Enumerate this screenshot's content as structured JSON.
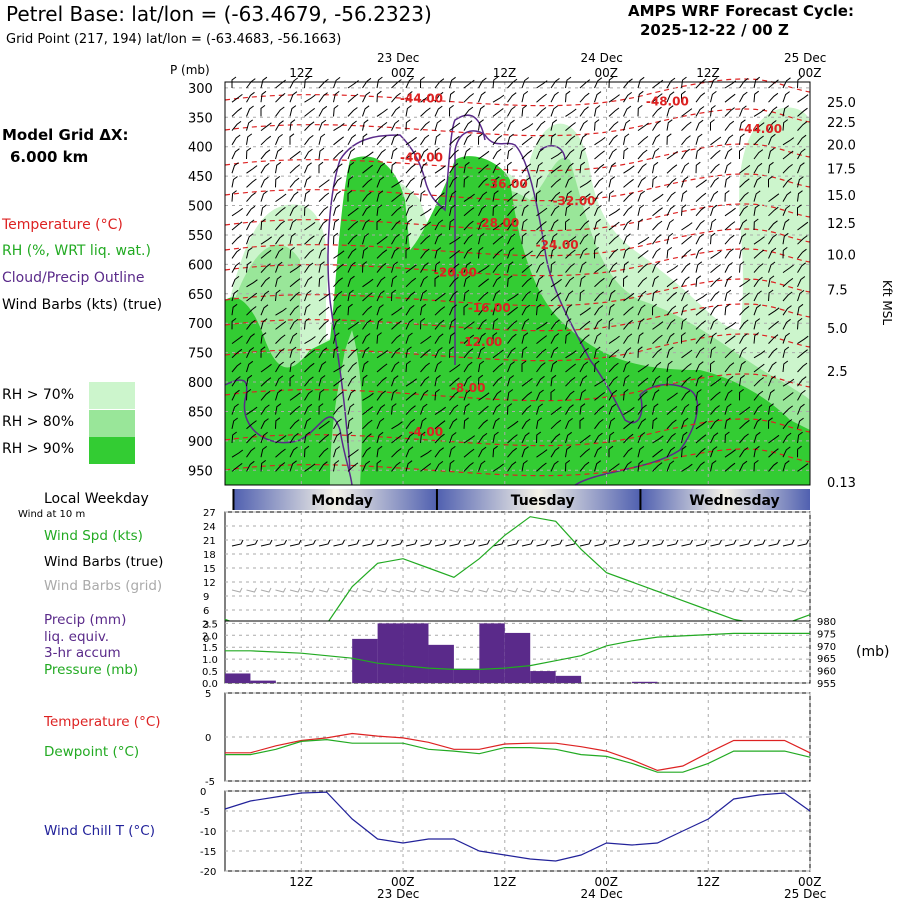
{
  "header": {
    "title": "Petrel Base:  lat/lon = (-63.4679, -56.2323)",
    "grid_point": "Grid Point (217, 194) lat/lon = (-63.4683, -56.1663)",
    "forecast_line1": "AMPS WRF Forecast Cycle:",
    "forecast_line2": "2025-12-22 / 00  Z",
    "model_grid_line1": "Model Grid ΔX:",
    "model_grid_line2": "6.000 km"
  },
  "legend": {
    "temperature": "Temperature (°C)",
    "rh": "RH (%, WRT liq. wat.)",
    "cloud": "Cloud/Precip Outline",
    "wind_barbs": "Wind Barbs (kts) (true)",
    "rh_levels": [
      {
        "label": "RH > 70%",
        "color": "#ccf5cc"
      },
      {
        "label": "RH > 80%",
        "color": "#99e699"
      },
      {
        "label": "RH > 90%",
        "color": "#33cc33"
      }
    ]
  },
  "panel_labels": {
    "local_weekday": "Local Weekday",
    "wind_10m": "Wind at 10 m",
    "wind_speed": "Wind Spd (kts)",
    "wind_barbs_true": "Wind Barbs (true)",
    "wind_barbs_grid": "Wind Barbs (grid)",
    "precip_1": "Precip (mm)",
    "precip_2": "liq. equiv.",
    "precip_3": "3-hr accum",
    "pressure": "Pressure (mb)",
    "temperature": "Temperature (°C)",
    "dewpoint": "Dewpoint (°C)",
    "wind_chill": "Wind Chill T (°C)",
    "pressure_unit": "(mb)",
    "p_axis_label": "P (mb)",
    "kft_label": "Kft MSL"
  },
  "colors": {
    "temp": "#dd2222",
    "rh_line": "#22aa22",
    "cloud": "#5a2a8a",
    "precip": "#5a2a8a",
    "wind_chill": "#22229a",
    "grid_barbs": "#aaaaaa"
  },
  "chart_data": [
    {
      "type": "area",
      "name": "time-height cross section",
      "x_tick_labels": [
        "12Z",
        "00Z",
        "12Z",
        "00Z",
        "12Z",
        "00Z"
      ],
      "x_tick_hours": [
        12,
        24,
        36,
        48,
        60,
        72
      ],
      "x_date_labels": [
        {
          "hour": 24,
          "label": "23 Dec"
        },
        {
          "hour": 48,
          "label": "24 Dec"
        },
        {
          "hour": 72,
          "label": "25 Dec"
        }
      ],
      "xlim_hours": [
        3,
        72
      ],
      "pressure_ticks": [
        300,
        350,
        400,
        450,
        500,
        550,
        600,
        650,
        700,
        750,
        800,
        850,
        900,
        950
      ],
      "ylim_pressure": [
        290,
        975
      ],
      "height_ticks_kft": [
        {
          "label": "25.0",
          "p": 324
        },
        {
          "label": "22.5",
          "p": 358
        },
        {
          "label": "20.0",
          "p": 396
        },
        {
          "label": "17.5",
          "p": 437
        },
        {
          "label": "15.0",
          "p": 482
        },
        {
          "label": "12.5",
          "p": 530
        },
        {
          "label": "10.0",
          "p": 583
        },
        {
          "label": "7.5",
          "p": 643
        },
        {
          "label": "5.0",
          "p": 708
        },
        {
          "label": "2.5",
          "p": 781
        },
        {
          "label": "0.13",
          "p": 970
        }
      ],
      "isotherm_labels": [
        {
          "label": "-44.00",
          "hour": 26,
          "p": 318
        },
        {
          "label": "-48.00",
          "hour": 55,
          "p": 323
        },
        {
          "label": "-44.00",
          "hour": 66,
          "p": 370
        },
        {
          "label": "-40.00",
          "hour": 26,
          "p": 418
        },
        {
          "label": "-36.00",
          "hour": 36,
          "p": 463
        },
        {
          "label": "-32.00",
          "hour": 44,
          "p": 492
        },
        {
          "label": "-28.00",
          "hour": 35,
          "p": 530
        },
        {
          "label": "-24.00",
          "hour": 42,
          "p": 567
        },
        {
          "label": "-20.00",
          "hour": 30,
          "p": 614
        },
        {
          "label": "-16.00",
          "hour": 34,
          "p": 674
        },
        {
          "label": "-12.00",
          "hour": 33,
          "p": 732
        },
        {
          "label": "-8.00",
          "hour": 32,
          "p": 810
        },
        {
          "label": "-4.00",
          "hour": 27,
          "p": 885
        }
      ],
      "day_bands": [
        {
          "label": "Monday",
          "start_hour": 4,
          "end_hour": 28
        },
        {
          "label": "Tuesday",
          "start_hour": 28,
          "end_hour": 52
        },
        {
          "label": "Wednesday",
          "start_hour": 52,
          "end_hour": 72
        }
      ]
    },
    {
      "type": "line",
      "name": "wind speed",
      "ylabel": "Wind Spd (kts)",
      "y_ticks": [
        0,
        3,
        6,
        9,
        12,
        15,
        18,
        21,
        24,
        27
      ],
      "ylim": [
        0,
        27
      ],
      "x_hours": [
        3,
        6,
        9,
        12,
        15,
        18,
        21,
        24,
        27,
        30,
        33,
        36,
        39,
        42,
        45,
        48,
        51,
        54,
        57,
        60,
        63,
        66,
        69,
        72
      ],
      "values": [
        4,
        2,
        3,
        3,
        3,
        11,
        16,
        17,
        15,
        13,
        17,
        22,
        26,
        25,
        19,
        14,
        12,
        10,
        8,
        6,
        4,
        3,
        3,
        5
      ]
    },
    {
      "type": "bar",
      "name": "precipitation",
      "ylabel": "Precip (mm)",
      "y_ticks": [
        0.0,
        0.5,
        1.0,
        1.5,
        2.0,
        2.5
      ],
      "ylim": [
        0,
        2.6
      ],
      "bars": [
        {
          "start_hour": 3,
          "end_hour": 6,
          "value": 0.4
        },
        {
          "start_hour": 6,
          "end_hour": 9,
          "value": 0.1
        },
        {
          "start_hour": 18,
          "end_hour": 21,
          "value": 1.85
        },
        {
          "start_hour": 21,
          "end_hour": 24,
          "value": 2.5
        },
        {
          "start_hour": 24,
          "end_hour": 27,
          "value": 2.5
        },
        {
          "start_hour": 27,
          "end_hour": 30,
          "value": 1.6
        },
        {
          "start_hour": 30,
          "end_hour": 33,
          "value": 0.6
        },
        {
          "start_hour": 33,
          "end_hour": 36,
          "value": 2.5
        },
        {
          "start_hour": 36,
          "end_hour": 39,
          "value": 2.1
        },
        {
          "start_hour": 39,
          "end_hour": 42,
          "value": 0.5
        },
        {
          "start_hour": 42,
          "end_hour": 45,
          "value": 0.3
        },
        {
          "start_hour": 51,
          "end_hour": 54,
          "value": 0.05
        }
      ]
    },
    {
      "type": "line",
      "name": "pressure",
      "ylabel": "Pressure (mb)",
      "y_ticks": [
        955,
        960,
        965,
        970,
        975,
        980
      ],
      "ylim": [
        955,
        980
      ],
      "x_hours": [
        3,
        6,
        9,
        12,
        15,
        18,
        21,
        24,
        27,
        30,
        33,
        36,
        39,
        42,
        45,
        48,
        51,
        54,
        57,
        60,
        63,
        66,
        69,
        72
      ],
      "values": [
        968,
        968,
        967.5,
        967,
        966,
        965,
        963,
        962,
        961,
        960.5,
        960.5,
        961,
        962,
        964,
        966,
        970,
        972,
        973.5,
        974,
        974.5,
        975,
        975,
        975,
        975
      ]
    },
    {
      "type": "line",
      "name": "temperature and dewpoint",
      "y_ticks": [
        -5,
        0,
        5
      ],
      "ylim": [
        -5,
        5
      ],
      "x_hours": [
        3,
        6,
        9,
        12,
        15,
        18,
        21,
        24,
        27,
        30,
        33,
        36,
        39,
        42,
        45,
        48,
        51,
        54,
        57,
        60,
        63,
        66,
        69,
        72
      ],
      "series": [
        {
          "name": "Temperature",
          "values": [
            -1.8,
            -1.8,
            -1.0,
            -0.4,
            -0.1,
            0.4,
            0.1,
            -0.1,
            -0.6,
            -1.4,
            -1.4,
            -0.8,
            -0.7,
            -0.7,
            -1.1,
            -1.6,
            -2.6,
            -3.8,
            -3.3,
            -1.8,
            -0.4,
            -0.4,
            -0.4,
            -1.8
          ]
        },
        {
          "name": "Dewpoint",
          "values": [
            -2.0,
            -2.0,
            -1.4,
            -0.5,
            -0.3,
            -0.7,
            -0.7,
            -0.7,
            -1.4,
            -1.6,
            -1.9,
            -1.2,
            -1.2,
            -1.4,
            -2.0,
            -2.2,
            -3.0,
            -4.0,
            -4.0,
            -3.0,
            -1.6,
            -1.6,
            -1.6,
            -2.3
          ]
        }
      ]
    },
    {
      "type": "line",
      "name": "wind chill",
      "ylabel": "Wind Chill T (°C)",
      "y_ticks": [
        0,
        -5,
        -10,
        -15,
        -20
      ],
      "ylim": [
        -20,
        0
      ],
      "x_hours": [
        3,
        6,
        9,
        12,
        15,
        18,
        21,
        24,
        27,
        30,
        33,
        36,
        39,
        42,
        45,
        48,
        51,
        54,
        57,
        60,
        63,
        66,
        69,
        72
      ],
      "values": [
        -4.5,
        -2.5,
        -1.5,
        -0.5,
        -0.3,
        -7,
        -12,
        -13,
        -12,
        -12,
        -15,
        -16,
        -17,
        -17.5,
        -16,
        -13,
        -13.5,
        -13,
        -10,
        -7,
        -2,
        -1,
        -0.5,
        -5
      ]
    }
  ]
}
